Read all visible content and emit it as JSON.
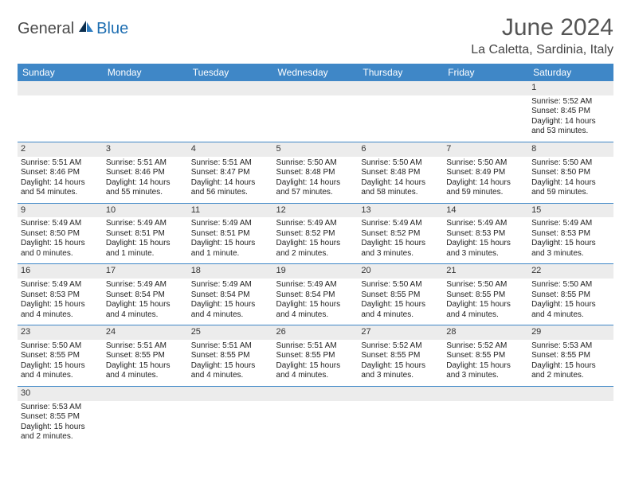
{
  "logo": {
    "text1": "General",
    "text2": "Blue"
  },
  "title": "June 2024",
  "location": "La Caletta, Sardinia, Italy",
  "colors": {
    "header_bg": "#3f87c7",
    "header_fg": "#ffffff",
    "daynum_bg": "#ececec",
    "rule": "#3f87c7"
  },
  "weekdays": [
    "Sunday",
    "Monday",
    "Tuesday",
    "Wednesday",
    "Thursday",
    "Friday",
    "Saturday"
  ],
  "weeks": [
    [
      null,
      null,
      null,
      null,
      null,
      null,
      {
        "d": "1",
        "sr": "Sunrise: 5:52 AM",
        "ss": "Sunset: 8:45 PM",
        "dl": "Daylight: 14 hours and 53 minutes."
      }
    ],
    [
      {
        "d": "2",
        "sr": "Sunrise: 5:51 AM",
        "ss": "Sunset: 8:46 PM",
        "dl": "Daylight: 14 hours and 54 minutes."
      },
      {
        "d": "3",
        "sr": "Sunrise: 5:51 AM",
        "ss": "Sunset: 8:46 PM",
        "dl": "Daylight: 14 hours and 55 minutes."
      },
      {
        "d": "4",
        "sr": "Sunrise: 5:51 AM",
        "ss": "Sunset: 8:47 PM",
        "dl": "Daylight: 14 hours and 56 minutes."
      },
      {
        "d": "5",
        "sr": "Sunrise: 5:50 AM",
        "ss": "Sunset: 8:48 PM",
        "dl": "Daylight: 14 hours and 57 minutes."
      },
      {
        "d": "6",
        "sr": "Sunrise: 5:50 AM",
        "ss": "Sunset: 8:48 PM",
        "dl": "Daylight: 14 hours and 58 minutes."
      },
      {
        "d": "7",
        "sr": "Sunrise: 5:50 AM",
        "ss": "Sunset: 8:49 PM",
        "dl": "Daylight: 14 hours and 59 minutes."
      },
      {
        "d": "8",
        "sr": "Sunrise: 5:50 AM",
        "ss": "Sunset: 8:50 PM",
        "dl": "Daylight: 14 hours and 59 minutes."
      }
    ],
    [
      {
        "d": "9",
        "sr": "Sunrise: 5:49 AM",
        "ss": "Sunset: 8:50 PM",
        "dl": "Daylight: 15 hours and 0 minutes."
      },
      {
        "d": "10",
        "sr": "Sunrise: 5:49 AM",
        "ss": "Sunset: 8:51 PM",
        "dl": "Daylight: 15 hours and 1 minute."
      },
      {
        "d": "11",
        "sr": "Sunrise: 5:49 AM",
        "ss": "Sunset: 8:51 PM",
        "dl": "Daylight: 15 hours and 1 minute."
      },
      {
        "d": "12",
        "sr": "Sunrise: 5:49 AM",
        "ss": "Sunset: 8:52 PM",
        "dl": "Daylight: 15 hours and 2 minutes."
      },
      {
        "d": "13",
        "sr": "Sunrise: 5:49 AM",
        "ss": "Sunset: 8:52 PM",
        "dl": "Daylight: 15 hours and 3 minutes."
      },
      {
        "d": "14",
        "sr": "Sunrise: 5:49 AM",
        "ss": "Sunset: 8:53 PM",
        "dl": "Daylight: 15 hours and 3 minutes."
      },
      {
        "d": "15",
        "sr": "Sunrise: 5:49 AM",
        "ss": "Sunset: 8:53 PM",
        "dl": "Daylight: 15 hours and 3 minutes."
      }
    ],
    [
      {
        "d": "16",
        "sr": "Sunrise: 5:49 AM",
        "ss": "Sunset: 8:53 PM",
        "dl": "Daylight: 15 hours and 4 minutes."
      },
      {
        "d": "17",
        "sr": "Sunrise: 5:49 AM",
        "ss": "Sunset: 8:54 PM",
        "dl": "Daylight: 15 hours and 4 minutes."
      },
      {
        "d": "18",
        "sr": "Sunrise: 5:49 AM",
        "ss": "Sunset: 8:54 PM",
        "dl": "Daylight: 15 hours and 4 minutes."
      },
      {
        "d": "19",
        "sr": "Sunrise: 5:49 AM",
        "ss": "Sunset: 8:54 PM",
        "dl": "Daylight: 15 hours and 4 minutes."
      },
      {
        "d": "20",
        "sr": "Sunrise: 5:50 AM",
        "ss": "Sunset: 8:55 PM",
        "dl": "Daylight: 15 hours and 4 minutes."
      },
      {
        "d": "21",
        "sr": "Sunrise: 5:50 AM",
        "ss": "Sunset: 8:55 PM",
        "dl": "Daylight: 15 hours and 4 minutes."
      },
      {
        "d": "22",
        "sr": "Sunrise: 5:50 AM",
        "ss": "Sunset: 8:55 PM",
        "dl": "Daylight: 15 hours and 4 minutes."
      }
    ],
    [
      {
        "d": "23",
        "sr": "Sunrise: 5:50 AM",
        "ss": "Sunset: 8:55 PM",
        "dl": "Daylight: 15 hours and 4 minutes."
      },
      {
        "d": "24",
        "sr": "Sunrise: 5:51 AM",
        "ss": "Sunset: 8:55 PM",
        "dl": "Daylight: 15 hours and 4 minutes."
      },
      {
        "d": "25",
        "sr": "Sunrise: 5:51 AM",
        "ss": "Sunset: 8:55 PM",
        "dl": "Daylight: 15 hours and 4 minutes."
      },
      {
        "d": "26",
        "sr": "Sunrise: 5:51 AM",
        "ss": "Sunset: 8:55 PM",
        "dl": "Daylight: 15 hours and 4 minutes."
      },
      {
        "d": "27",
        "sr": "Sunrise: 5:52 AM",
        "ss": "Sunset: 8:55 PM",
        "dl": "Daylight: 15 hours and 3 minutes."
      },
      {
        "d": "28",
        "sr": "Sunrise: 5:52 AM",
        "ss": "Sunset: 8:55 PM",
        "dl": "Daylight: 15 hours and 3 minutes."
      },
      {
        "d": "29",
        "sr": "Sunrise: 5:53 AM",
        "ss": "Sunset: 8:55 PM",
        "dl": "Daylight: 15 hours and 2 minutes."
      }
    ],
    [
      {
        "d": "30",
        "sr": "Sunrise: 5:53 AM",
        "ss": "Sunset: 8:55 PM",
        "dl": "Daylight: 15 hours and 2 minutes."
      },
      null,
      null,
      null,
      null,
      null,
      null
    ]
  ]
}
